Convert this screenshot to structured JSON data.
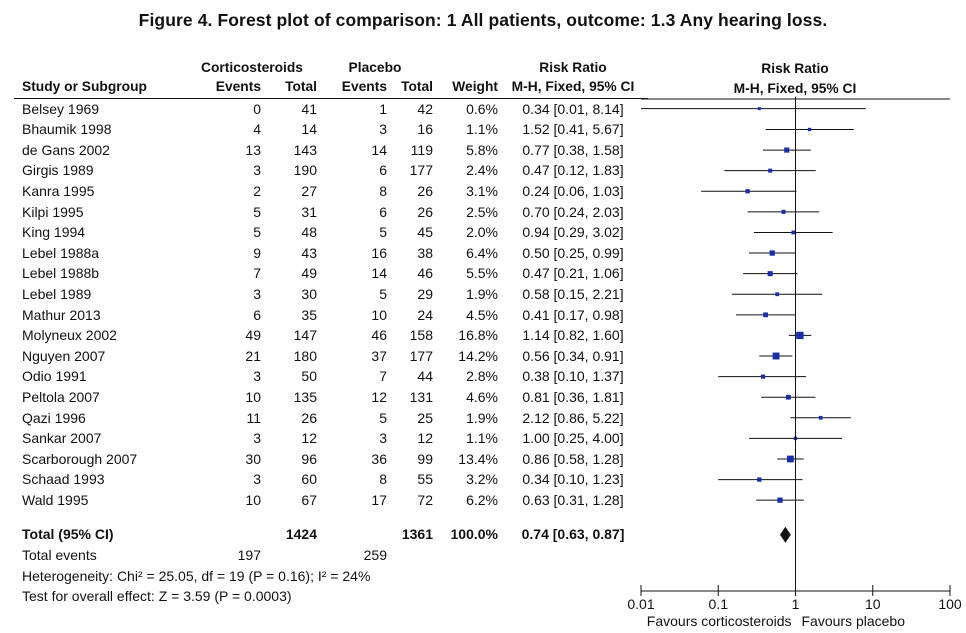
{
  "title": "Figure 4.   Forest plot of comparison: 1 All patients, outcome: 1.3 Any hearing loss.",
  "header": {
    "group1": "Corticosteroids",
    "group2": "Placebo",
    "rr_header": "Risk Ratio",
    "rr_sub": "M-H, Fixed, 95% CI",
    "col_study": "Study or Subgroup",
    "col_events1": "Events",
    "col_total1": "Total",
    "col_events2": "Events",
    "col_total2": "Total",
    "col_weight": "Weight",
    "plot_header": "Risk Ratio",
    "plot_sub": "M-H, Fixed, 95% CI"
  },
  "chart_data": {
    "type": "forest",
    "x_scale": "log",
    "xlim": [
      0.01,
      100
    ],
    "ticks": [
      "0.01",
      "0.1",
      "1",
      "10",
      "100"
    ],
    "tick_values": [
      0.01,
      0.1,
      1,
      10,
      100
    ],
    "favours_left": "Favours corticosteroids",
    "favours_right": "Favours placebo",
    "studies": [
      {
        "study": "Belsey 1969",
        "e1": "0",
        "n1": "41",
        "e2": "1",
        "n2": "42",
        "weight": "0.6%",
        "ci": "0.34 [0.01, 8.14]",
        "rr": 0.34,
        "lo": 0.01,
        "hi": 8.14,
        "w": 0.6
      },
      {
        "study": "Bhaumik 1998",
        "e1": "4",
        "n1": "14",
        "e2": "3",
        "n2": "16",
        "weight": "1.1%",
        "ci": "1.52 [0.41, 5.67]",
        "rr": 1.52,
        "lo": 0.41,
        "hi": 5.67,
        "w": 1.1
      },
      {
        "study": "de Gans 2002",
        "e1": "13",
        "n1": "143",
        "e2": "14",
        "n2": "119",
        "weight": "5.8%",
        "ci": "0.77 [0.38, 1.58]",
        "rr": 0.77,
        "lo": 0.38,
        "hi": 1.58,
        "w": 5.8
      },
      {
        "study": "Girgis 1989",
        "e1": "3",
        "n1": "190",
        "e2": "6",
        "n2": "177",
        "weight": "2.4%",
        "ci": "0.47 [0.12, 1.83]",
        "rr": 0.47,
        "lo": 0.12,
        "hi": 1.83,
        "w": 2.4
      },
      {
        "study": "Kanra 1995",
        "e1": "2",
        "n1": "27",
        "e2": "8",
        "n2": "26",
        "weight": "3.1%",
        "ci": "0.24 [0.06, 1.03]",
        "rr": 0.24,
        "lo": 0.06,
        "hi": 1.03,
        "w": 3.1
      },
      {
        "study": "Kilpi 1995",
        "e1": "5",
        "n1": "31",
        "e2": "6",
        "n2": "26",
        "weight": "2.5%",
        "ci": "0.70 [0.24, 2.03]",
        "rr": 0.7,
        "lo": 0.24,
        "hi": 2.03,
        "w": 2.5
      },
      {
        "study": "King 1994",
        "e1": "5",
        "n1": "48",
        "e2": "5",
        "n2": "45",
        "weight": "2.0%",
        "ci": "0.94 [0.29, 3.02]",
        "rr": 0.94,
        "lo": 0.29,
        "hi": 3.02,
        "w": 2.0
      },
      {
        "study": "Lebel 1988a",
        "e1": "9",
        "n1": "43",
        "e2": "16",
        "n2": "38",
        "weight": "6.4%",
        "ci": "0.50 [0.25, 0.99]",
        "rr": 0.5,
        "lo": 0.25,
        "hi": 0.99,
        "w": 6.4
      },
      {
        "study": "Lebel 1988b",
        "e1": "7",
        "n1": "49",
        "e2": "14",
        "n2": "46",
        "weight": "5.5%",
        "ci": "0.47 [0.21, 1.06]",
        "rr": 0.47,
        "lo": 0.21,
        "hi": 1.06,
        "w": 5.5
      },
      {
        "study": "Lebel 1989",
        "e1": "3",
        "n1": "30",
        "e2": "5",
        "n2": "29",
        "weight": "1.9%",
        "ci": "0.58 [0.15, 2.21]",
        "rr": 0.58,
        "lo": 0.15,
        "hi": 2.21,
        "w": 1.9
      },
      {
        "study": "Mathur 2013",
        "e1": "6",
        "n1": "35",
        "e2": "10",
        "n2": "24",
        "weight": "4.5%",
        "ci": "0.41 [0.17, 0.98]",
        "rr": 0.41,
        "lo": 0.17,
        "hi": 0.98,
        "w": 4.5
      },
      {
        "study": "Molyneux 2002",
        "e1": "49",
        "n1": "147",
        "e2": "46",
        "n2": "158",
        "weight": "16.8%",
        "ci": "1.14 [0.82, 1.60]",
        "rr": 1.14,
        "lo": 0.82,
        "hi": 1.6,
        "w": 16.8
      },
      {
        "study": "Nguyen 2007",
        "e1": "21",
        "n1": "180",
        "e2": "37",
        "n2": "177",
        "weight": "14.2%",
        "ci": "0.56 [0.34, 0.91]",
        "rr": 0.56,
        "lo": 0.34,
        "hi": 0.91,
        "w": 14.2
      },
      {
        "study": "Odio 1991",
        "e1": "3",
        "n1": "50",
        "e2": "7",
        "n2": "44",
        "weight": "2.8%",
        "ci": "0.38 [0.10, 1.37]",
        "rr": 0.38,
        "lo": 0.1,
        "hi": 1.37,
        "w": 2.8
      },
      {
        "study": "Peltola 2007",
        "e1": "10",
        "n1": "135",
        "e2": "12",
        "n2": "131",
        "weight": "4.6%",
        "ci": "0.81 [0.36, 1.81]",
        "rr": 0.81,
        "lo": 0.36,
        "hi": 1.81,
        "w": 4.6
      },
      {
        "study": "Qazi 1996",
        "e1": "11",
        "n1": "26",
        "e2": "5",
        "n2": "25",
        "weight": "1.9%",
        "ci": "2.12 [0.86, 5.22]",
        "rr": 2.12,
        "lo": 0.86,
        "hi": 5.22,
        "w": 1.9
      },
      {
        "study": "Sankar 2007",
        "e1": "3",
        "n1": "12",
        "e2": "3",
        "n2": "12",
        "weight": "1.1%",
        "ci": "1.00 [0.25, 4.00]",
        "rr": 1.0,
        "lo": 0.25,
        "hi": 4.0,
        "w": 1.1
      },
      {
        "study": "Scarborough 2007",
        "e1": "30",
        "n1": "96",
        "e2": "36",
        "n2": "99",
        "weight": "13.4%",
        "ci": "0.86 [0.58, 1.28]",
        "rr": 0.86,
        "lo": 0.58,
        "hi": 1.28,
        "w": 13.4
      },
      {
        "study": "Schaad 1993",
        "e1": "3",
        "n1": "60",
        "e2": "8",
        "n2": "55",
        "weight": "3.2%",
        "ci": "0.34 [0.10, 1.23]",
        "rr": 0.34,
        "lo": 0.1,
        "hi": 1.23,
        "w": 3.2
      },
      {
        "study": "Wald 1995",
        "e1": "10",
        "n1": "67",
        "e2": "17",
        "n2": "72",
        "weight": "6.2%",
        "ci": "0.63 [0.31, 1.28]",
        "rr": 0.63,
        "lo": 0.31,
        "hi": 1.28,
        "w": 6.2
      }
    ],
    "total": {
      "label": "Total (95% CI)",
      "n1": "1424",
      "n2": "1361",
      "weight": "100.0%",
      "ci": "0.74 [0.63, 0.87]",
      "rr": 0.74,
      "lo": 0.63,
      "hi": 0.87
    },
    "total_events": {
      "label": "Total events",
      "e1": "197",
      "e2": "259"
    },
    "heterogeneity": "Heterogeneity: Chi² = 25.05, df = 19 (P = 0.16); I² = 24%",
    "overall_effect": "Test for overall effect: Z = 3.59 (P = 0.0003)",
    "colors": {
      "square": "#1a2ea8",
      "line": "#111111",
      "diamond": "#111111"
    }
  }
}
